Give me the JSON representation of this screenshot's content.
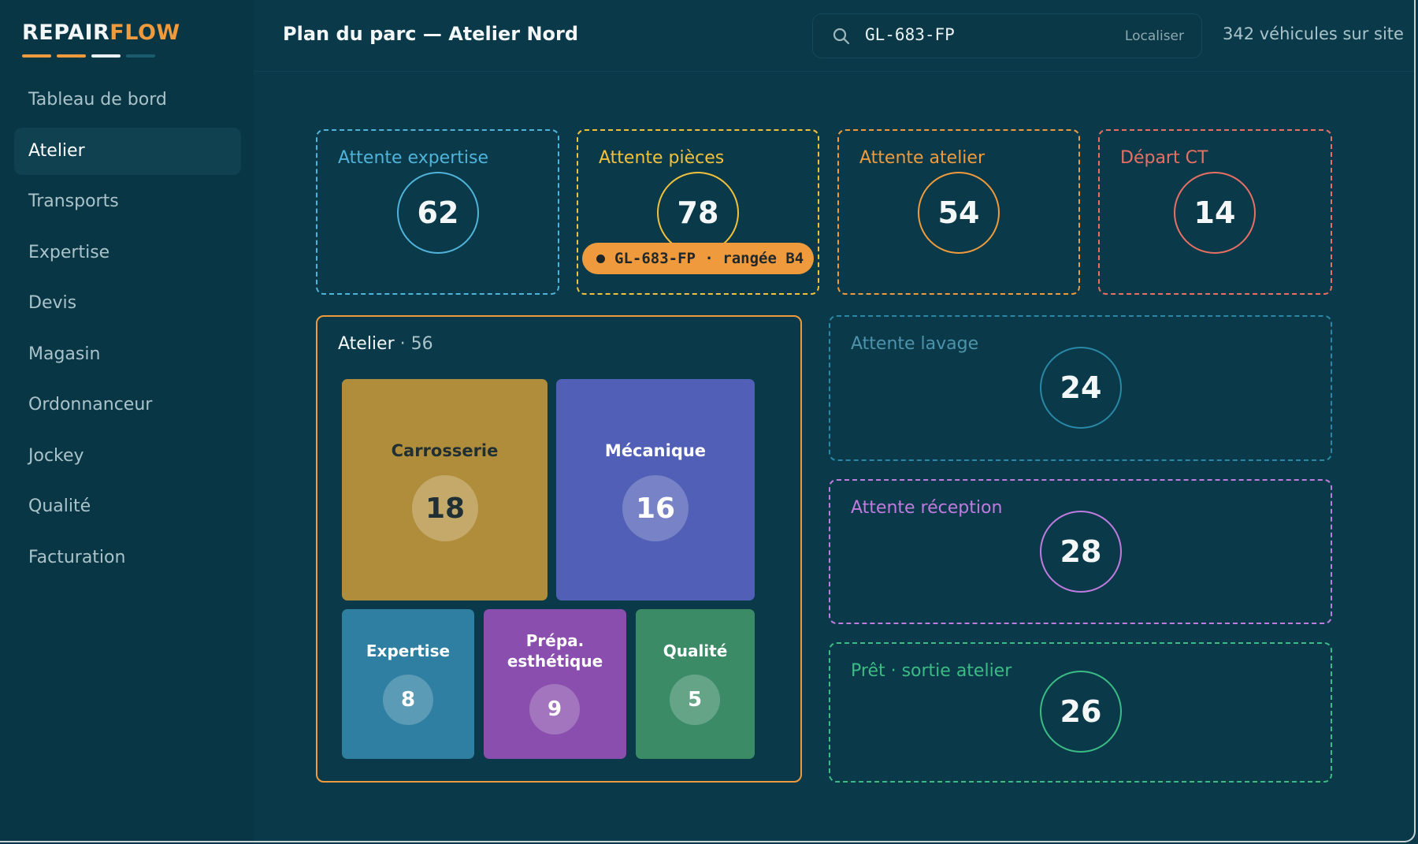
{
  "logo": {
    "part1": "REPAIR",
    "part2": "FLOW",
    "bar_colors": [
      "#ef9b3d",
      "#ef9b3d",
      "#e8f1f3",
      "#1b5b6e"
    ]
  },
  "sidebar": {
    "items": [
      {
        "label": "Tableau de bord",
        "active": false
      },
      {
        "label": "Atelier",
        "active": true
      },
      {
        "label": "Transports",
        "active": false
      },
      {
        "label": "Expertise",
        "active": false
      },
      {
        "label": "Devis",
        "active": false
      },
      {
        "label": "Magasin",
        "active": false
      },
      {
        "label": "Ordonnanceur",
        "active": false
      },
      {
        "label": "Jockey",
        "active": false
      },
      {
        "label": "Qualité",
        "active": false
      },
      {
        "label": "Facturation",
        "active": false
      }
    ]
  },
  "header": {
    "title": "Plan du parc — Atelier Nord",
    "search": {
      "icon": "search-icon",
      "value": "GL-683-FP",
      "button": "Localiser"
    },
    "vehicles_count": "342 véhicules sur site"
  },
  "zones": {
    "attente_expertise": {
      "label": "Attente expertise",
      "count": "62",
      "color": "#4fb3da"
    },
    "attente_pieces": {
      "label": "Attente pièces",
      "count": "78",
      "color": "#f2c13c"
    },
    "attente_atelier": {
      "label": "Attente atelier",
      "count": "54",
      "color": "#ef9b3d"
    },
    "depart_ct": {
      "label": "Départ CT",
      "count": "14",
      "color": "#e86f64"
    },
    "attente_lavage": {
      "label": "Attente lavage",
      "count": "24",
      "color": "#2a87a6"
    },
    "attente_reception": {
      "label": "Attente réception",
      "count": "28",
      "color": "#c07be0"
    },
    "pret_sortie": {
      "label": "Prêt · sortie atelier",
      "count": "26",
      "color": "#3dbb85"
    }
  },
  "locate_badge": {
    "text": "GL-683-FP · rangée B4",
    "color": "#ef9b3d"
  },
  "atelier": {
    "title": "Atelier",
    "count": "· 56",
    "tiles": {
      "carrosserie": {
        "label": "Carrosserie",
        "count": "18",
        "color": "#b08d3a"
      },
      "mecanique": {
        "label": "Mécanique",
        "count": "16",
        "color": "#5160b6"
      },
      "expertise": {
        "label": "Expertise",
        "count": "8",
        "color": "#2e7fa1"
      },
      "prepa": {
        "label_line1": "Prépa.",
        "label_line2": "esthétique",
        "count": "9",
        "color": "#8a4fae"
      },
      "qualite": {
        "label": "Qualité",
        "count": "5",
        "color": "#3b8b67"
      }
    }
  }
}
